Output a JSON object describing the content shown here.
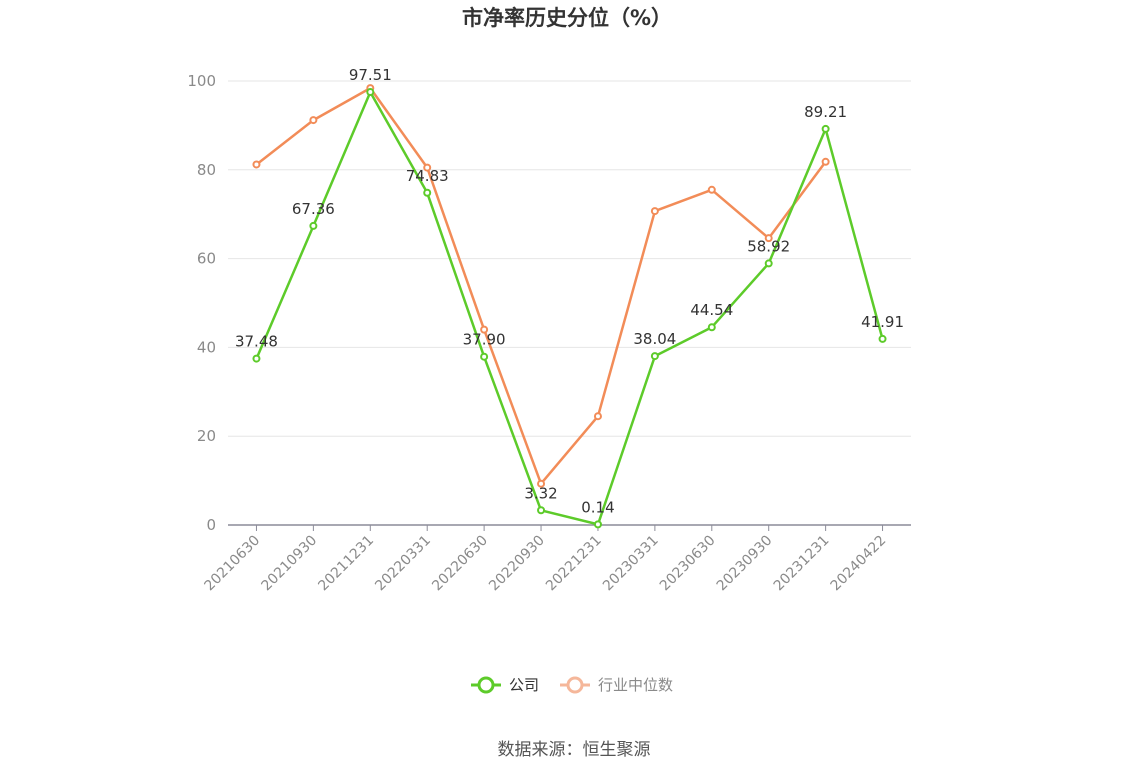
{
  "chart_data": {
    "type": "line",
    "title": "市净率历史分位（%）",
    "categories": [
      "20210630",
      "20210930",
      "20211231",
      "20220331",
      "20220630",
      "20220930",
      "20221231",
      "20230331",
      "20230630",
      "20230930",
      "20231231",
      "20240422"
    ],
    "ylim": [
      0,
      100
    ],
    "yticks": [
      0,
      20,
      40,
      60,
      80,
      100
    ],
    "grid": true,
    "legend_position": "bottom",
    "series": [
      {
        "name": "公司",
        "color": "#5dcb2a",
        "values": [
          37.48,
          67.36,
          97.51,
          74.83,
          37.9,
          3.32,
          0.14,
          38.04,
          44.54,
          58.92,
          89.21,
          41.91
        ],
        "labels": [
          "37.48",
          "67.36",
          "97.51",
          "74.83",
          "37.90",
          "3.32",
          "0.14",
          "38.04",
          "44.54",
          "58.92",
          "89.21",
          "41.91"
        ]
      },
      {
        "name": "行业中位数",
        "color": "#f28c58",
        "values": [
          81.2,
          91.2,
          98.4,
          80.5,
          44.0,
          9.3,
          24.5,
          70.7,
          75.5,
          64.6,
          81.8,
          null
        ]
      }
    ]
  },
  "legend": {
    "company_label": "公司",
    "industry_label": "行业中位数",
    "company_color": "#5dcb2a",
    "industry_color": "#f5b79a"
  },
  "source_text": "数据来源：恒生聚源"
}
